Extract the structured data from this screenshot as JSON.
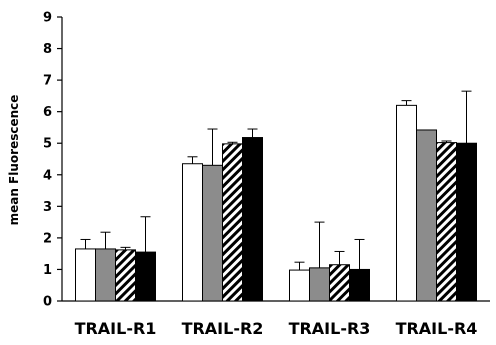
{
  "chart_data": {
    "type": "bar",
    "title": "",
    "xlabel": "",
    "ylabel": "mean Fluorescence",
    "ylim": [
      0,
      9
    ],
    "yticks": [
      "0",
      "1",
      "2",
      "3",
      "4",
      "5",
      "6",
      "7",
      "8",
      "9"
    ],
    "grid": false,
    "legend": "none",
    "categories": [
      "TRAIL-R1",
      "TRAIL-R2",
      "TRAIL-R3",
      "TRAIL-R4"
    ],
    "series": [
      {
        "fill": "white",
        "values": [
          1.65,
          4.35,
          0.98,
          6.2
        ],
        "errors": [
          0.3,
          0.22,
          0.25,
          0.15
        ]
      },
      {
        "fill": "gray",
        "values": [
          1.65,
          4.3,
          1.05,
          5.42
        ],
        "errors": [
          0.53,
          1.15,
          1.45,
          0
        ]
      },
      {
        "fill": "hatched",
        "values": [
          1.62,
          4.98,
          1.15,
          5.02
        ],
        "errors": [
          0.08,
          0.05,
          0.42,
          0.05
        ]
      },
      {
        "fill": "black",
        "values": [
          1.55,
          5.18,
          1.0,
          5.0
        ],
        "errors": [
          1.12,
          0.27,
          0.95,
          1.65
        ]
      }
    ],
    "colors": {
      "white": "#ffffff",
      "gray": "#8c8c8c",
      "black": "#000000",
      "stroke": "#000000"
    }
  }
}
